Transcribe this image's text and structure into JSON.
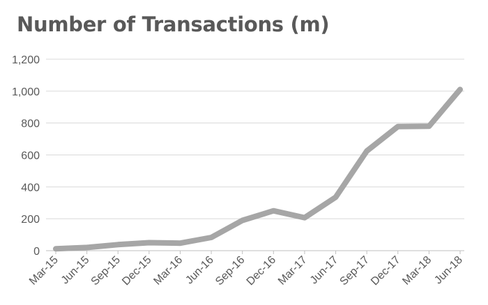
{
  "chart_data": {
    "type": "line",
    "title": "Number of Transactions (m)",
    "categories": [
      "Mar-15",
      "Jun-15",
      "Sep-15",
      "Dec-15",
      "Mar-16",
      "Jun-16",
      "Sep-16",
      "Dec-16",
      "Mar-17",
      "Jun-17",
      "Sep-17",
      "Dec-17",
      "Mar-18",
      "Jun-18"
    ],
    "series": [
      {
        "values": [
          12,
          20,
          38,
          50,
          47,
          83,
          190,
          250,
          207,
          335,
          625,
          778,
          780,
          1010
        ]
      }
    ],
    "ylim": [
      0,
      1200
    ],
    "yticks": [
      "0",
      "200",
      "400",
      "600",
      "800",
      "1,000",
      "1,200"
    ],
    "ytick_values": [
      0,
      200,
      400,
      600,
      800,
      1000,
      1200
    ],
    "grid": true,
    "line_color": "#a6a6a6",
    "grid_color": "#d9d9d9",
    "axis_color": "#bfbfbf",
    "text_color": "#595959"
  }
}
